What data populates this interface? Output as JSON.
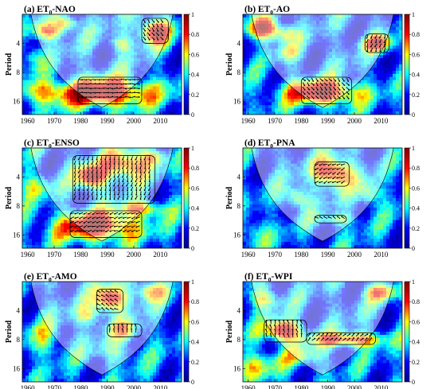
{
  "colors": {
    "colormap": [
      "#00008f",
      "#0000ff",
      "#00ffff",
      "#ffff00",
      "#ff0000",
      "#800000"
    ],
    "arrows": "#000000",
    "cone_fill": "#ffffff",
    "cone_alpha": 0.45
  },
  "chart_data": [
    {
      "type": "heatmap",
      "title_prefix": "(a) ET",
      "title_sub": "0",
      "title_suffix": "-NAO",
      "ylabel": "Period",
      "xlim": [
        1958,
        2018
      ],
      "x_ticks": [
        1960,
        1970,
        1980,
        1990,
        2000,
        2010
      ],
      "y_ticks": [
        4,
        8,
        16
      ],
      "ylim": [
        2,
        22
      ],
      "y_scale": "log2",
      "colorbar_ticks": [
        0,
        0.2,
        0.4,
        0.6,
        0.8,
        1
      ],
      "cone_of_influence": true,
      "blobs": [
        {
          "x": 1967,
          "period": 3.0,
          "sx": 4,
          "sy": 0.22,
          "v": 0.75
        },
        {
          "x": 1975,
          "period": 2.5,
          "sx": 3,
          "sy": 0.18,
          "v": 0.7
        },
        {
          "x": 2008,
          "period": 3.0,
          "sx": 4,
          "sy": 0.3,
          "v": 0.95
        },
        {
          "x": 1995,
          "period": 4.0,
          "sx": 3,
          "sy": 0.2,
          "v": 0.55
        },
        {
          "x": 1962,
          "period": 5.5,
          "sx": 3,
          "sy": 0.25,
          "v": 0.5
        },
        {
          "x": 1988,
          "period": 13.0,
          "sx": 14,
          "sy": 0.35,
          "v": 0.95
        },
        {
          "x": 1965,
          "period": 13.0,
          "sx": 6,
          "sy": 0.25,
          "v": 0.5
        }
      ],
      "significant": [
        {
          "x": [
            1979,
            2003
          ],
          "period": [
            9,
            17
          ]
        },
        {
          "x": [
            2003,
            2013
          ],
          "period": [
            2.2,
            4
          ]
        }
      ]
    },
    {
      "type": "heatmap",
      "title_prefix": "(b) ET",
      "title_sub": "0",
      "title_suffix": "-AO",
      "ylabel": "Period",
      "xlim": [
        1958,
        2018
      ],
      "x_ticks": [
        1960,
        1970,
        1980,
        1990,
        2000,
        2010
      ],
      "y_ticks": [
        4,
        8,
        16
      ],
      "ylim": [
        2,
        22
      ],
      "y_scale": "log2",
      "colorbar_ticks": [
        0,
        0.2,
        0.4,
        0.6,
        0.8,
        1
      ],
      "cone_of_influence": true,
      "blobs": [
        {
          "x": 1966,
          "period": 2.8,
          "sx": 4,
          "sy": 0.25,
          "v": 0.95
        },
        {
          "x": 1974,
          "period": 3.2,
          "sx": 3,
          "sy": 0.2,
          "v": 0.6
        },
        {
          "x": 2009,
          "period": 4.0,
          "sx": 4,
          "sy": 0.2,
          "v": 0.8
        },
        {
          "x": 1988,
          "period": 13.0,
          "sx": 10,
          "sy": 0.3,
          "v": 0.95
        },
        {
          "x": 1975,
          "period": 5.0,
          "sx": 3,
          "sy": 0.2,
          "v": 0.5
        }
      ],
      "significant": [
        {
          "x": [
            1980,
            1999
          ],
          "period": [
            9,
            17
          ]
        },
        {
          "x": [
            2004,
            2013
          ],
          "period": [
            3.2,
            5
          ]
        }
      ]
    },
    {
      "type": "heatmap",
      "title_prefix": "(c) ET",
      "title_sub": "0",
      "title_suffix": "-ENSO",
      "ylabel": "Period",
      "xlim": [
        1958,
        2018
      ],
      "x_ticks": [
        1960,
        1970,
        1980,
        1990,
        2000,
        2010
      ],
      "y_ticks": [
        4,
        8,
        16
      ],
      "ylim": [
        2,
        22
      ],
      "y_scale": "log2",
      "colorbar_ticks": [
        0,
        0.2,
        0.4,
        0.6,
        0.8,
        1
      ],
      "cone_of_influence": true,
      "blobs": [
        {
          "x": 1984,
          "period": 4.0,
          "sx": 4,
          "sy": 0.3,
          "v": 0.95
        },
        {
          "x": 1997,
          "period": 3.0,
          "sx": 6,
          "sy": 0.35,
          "v": 0.85
        },
        {
          "x": 2008,
          "period": 2.5,
          "sx": 3,
          "sy": 0.2,
          "v": 0.6
        },
        {
          "x": 1986,
          "period": 13.0,
          "sx": 11,
          "sy": 0.35,
          "v": 0.95
        },
        {
          "x": 2003,
          "period": 8.5,
          "sx": 6,
          "sy": 0.2,
          "v": 0.7
        },
        {
          "x": 1963,
          "period": 5.0,
          "sx": 4,
          "sy": 0.3,
          "v": 0.55
        }
      ],
      "significant": [
        {
          "x": [
            1977,
            2008
          ],
          "period": [
            2.4,
            7.5
          ]
        },
        {
          "x": [
            1976,
            2003
          ],
          "period": [
            9,
            17
          ]
        }
      ]
    },
    {
      "type": "heatmap",
      "title_prefix": "(d) ET",
      "title_sub": "0",
      "title_suffix": "-PNA",
      "ylabel": "Period",
      "xlim": [
        1958,
        2018
      ],
      "x_ticks": [
        1960,
        1970,
        1980,
        1990,
        2000,
        2010
      ],
      "y_ticks": [
        4,
        8,
        16
      ],
      "ylim": [
        2,
        22
      ],
      "y_scale": "log2",
      "colorbar_ticks": [
        0,
        0.2,
        0.4,
        0.6,
        0.8,
        1
      ],
      "cone_of_influence": true,
      "blobs": [
        {
          "x": 1992,
          "period": 3.6,
          "sx": 5,
          "sy": 0.35,
          "v": 0.95
        },
        {
          "x": 1978,
          "period": 6.5,
          "sx": 3,
          "sy": 0.25,
          "v": 0.65
        },
        {
          "x": 2006,
          "period": 6.0,
          "sx": 3,
          "sy": 0.3,
          "v": 0.6
        },
        {
          "x": 1993,
          "period": 11.0,
          "sx": 5,
          "sy": 0.15,
          "v": 0.55
        },
        {
          "x": 1962,
          "period": 15.0,
          "sx": 4,
          "sy": 0.3,
          "v": 0.5
        }
      ],
      "significant": [
        {
          "x": [
            1985,
            1998
          ],
          "period": [
            2.8,
            5
          ]
        },
        {
          "x": [
            1985,
            1997
          ],
          "period": [
            10,
            12
          ]
        }
      ]
    },
    {
      "type": "heatmap",
      "title_prefix": "(e) ET",
      "title_sub": "0",
      "title_suffix": "-AMO",
      "ylabel": "Period",
      "xlim": [
        1958,
        2018
      ],
      "x_ticks": [
        1960,
        1970,
        1980,
        1990,
        2000,
        2010
      ],
      "y_ticks": [
        4,
        8,
        16
      ],
      "ylim": [
        2,
        22
      ],
      "y_scale": "log2",
      "colorbar_ticks": [
        0,
        0.2,
        0.4,
        0.6,
        0.8,
        1
      ],
      "cone_of_influence": true,
      "blobs": [
        {
          "x": 1991,
          "period": 3.0,
          "sx": 4,
          "sy": 0.3,
          "v": 0.95
        },
        {
          "x": 2006,
          "period": 2.5,
          "sx": 4,
          "sy": 0.25,
          "v": 0.7
        },
        {
          "x": 1983,
          "period": 4.5,
          "sx": 4,
          "sy": 0.25,
          "v": 0.55
        },
        {
          "x": 1997,
          "period": 6.5,
          "sx": 4,
          "sy": 0.25,
          "v": 0.6
        },
        {
          "x": 1967,
          "period": 8.0,
          "sx": 5,
          "sy": 0.4,
          "v": 0.5
        },
        {
          "x": 1993,
          "period": 11.0,
          "sx": 6,
          "sy": 0.25,
          "v": 0.45
        }
      ],
      "significant": [
        {
          "x": [
            1986,
            1996
          ],
          "period": [
            2.4,
            4.2
          ]
        },
        {
          "x": [
            1990,
            2003
          ],
          "period": [
            5.5,
            7.5
          ]
        }
      ]
    },
    {
      "type": "heatmap",
      "title_prefix": "(f) ET",
      "title_sub": "0",
      "title_suffix": "-WPI",
      "ylabel": "Period",
      "xlim": [
        1958,
        2018
      ],
      "x_ticks": [
        1960,
        1970,
        1980,
        1990,
        2000,
        2010
      ],
      "y_ticks": [
        4,
        8,
        16
      ],
      "ylim": [
        2,
        22
      ],
      "y_scale": "log2",
      "colorbar_ticks": [
        0,
        0.2,
        0.4,
        0.6,
        0.8,
        1
      ],
      "cone_of_influence": true,
      "blobs": [
        {
          "x": 1973,
          "period": 6.5,
          "sx": 5,
          "sy": 0.25,
          "v": 0.95
        },
        {
          "x": 1998,
          "period": 8.0,
          "sx": 9,
          "sy": 0.18,
          "v": 0.85
        },
        {
          "x": 1966,
          "period": 3.0,
          "sx": 4,
          "sy": 0.25,
          "v": 0.6
        },
        {
          "x": 2010,
          "period": 2.6,
          "sx": 4,
          "sy": 0.2,
          "v": 0.7
        },
        {
          "x": 1980,
          "period": 12.0,
          "sx": 6,
          "sy": 0.25,
          "v": 0.5
        },
        {
          "x": 1963,
          "period": 15.0,
          "sx": 5,
          "sy": 0.3,
          "v": 0.6
        }
      ],
      "significant": [
        {
          "x": [
            1966,
            1982
          ],
          "period": [
            5,
            8.5
          ]
        },
        {
          "x": [
            1982,
            2008
          ],
          "period": [
            6.8,
            9
          ]
        }
      ]
    }
  ]
}
